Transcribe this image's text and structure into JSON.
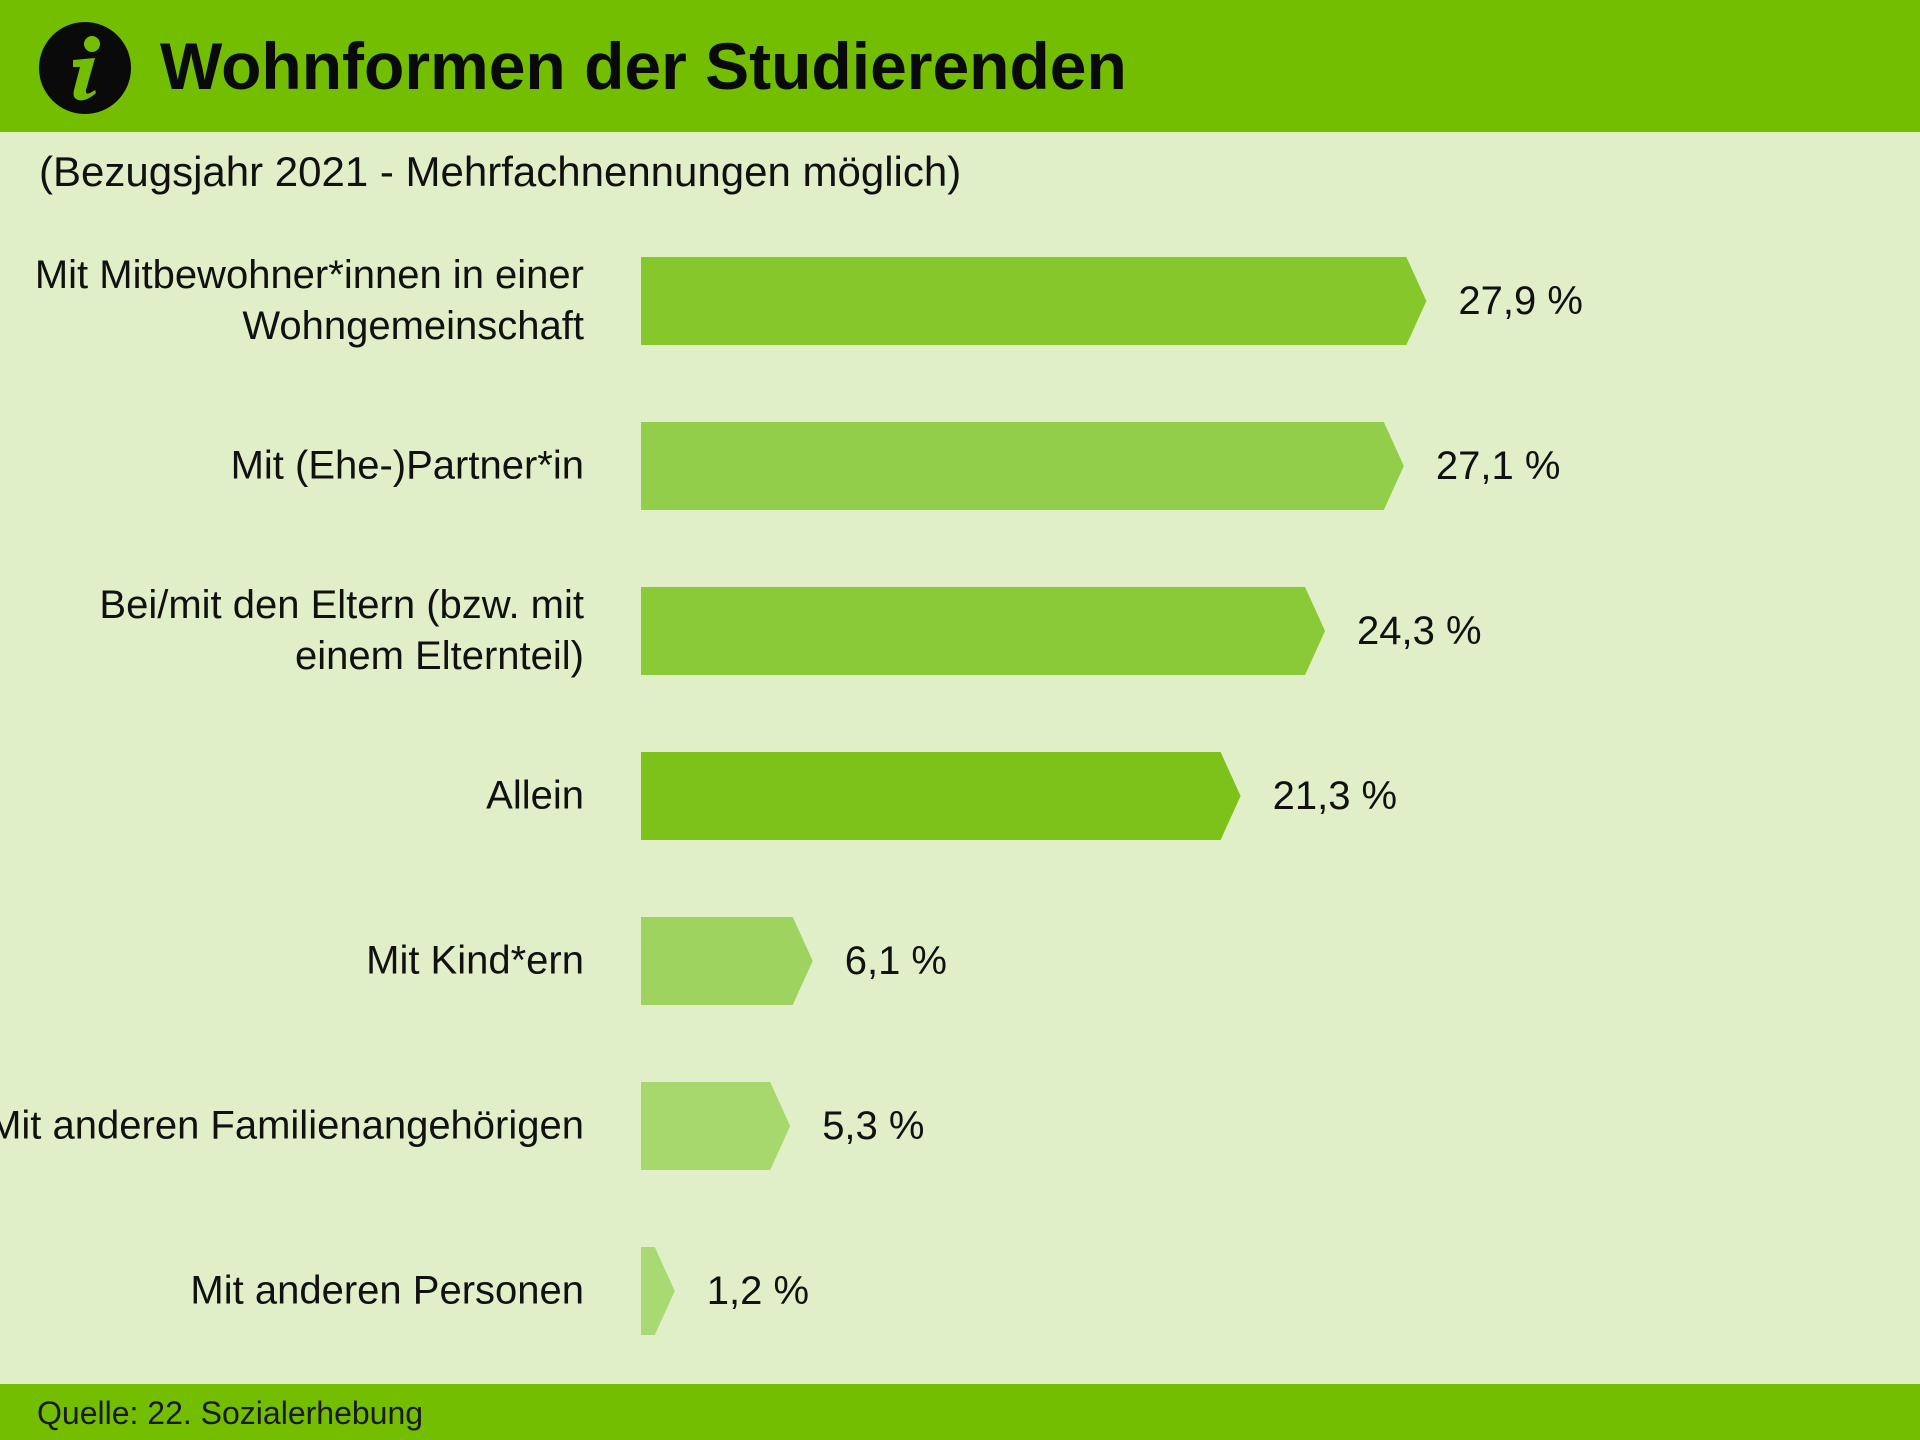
{
  "header": {
    "title": "Wohnformen der Studierenden",
    "icon": "info-icon",
    "color": "#73be00"
  },
  "subtitle": "(Bezugsjahr 2021 - Mehrfachnennungen möglich)",
  "chart_data": {
    "type": "bar",
    "orientation": "horizontal",
    "title": "Wohnformen der Studierenden",
    "subtitle": "(Bezugsjahr 2021 - Mehrfachnennungen möglich)",
    "unit": "%",
    "categories": [
      "Mit Mitbewohner*innen in einer Wohngemeinschaft",
      "Mit (Ehe-)Partner*in",
      "Bei/mit den Eltern (bzw. mit einem Elternteil)",
      "Allein",
      "Mit Kind*ern",
      "Mit anderen Familienangehörigen",
      "Mit anderen Personen"
    ],
    "values": [
      27.9,
      27.1,
      24.3,
      21.3,
      6.1,
      5.3,
      1.2
    ],
    "value_labels": [
      "27,9 %",
      "27,1 %",
      "24,3 %",
      "21,3 %",
      "6,1 %",
      "5,3 %",
      "1,2 %"
    ],
    "bar_colors": [
      "#86c72c",
      "#93ce4b",
      "#8bca37",
      "#7dc21a",
      "#9dd35e",
      "#a6d86e",
      "#a9d972"
    ],
    "xlim": [
      0,
      30
    ],
    "grid": false,
    "legend": "none"
  },
  "footer": {
    "source": "Quelle: 22. Sozialerhebung"
  }
}
